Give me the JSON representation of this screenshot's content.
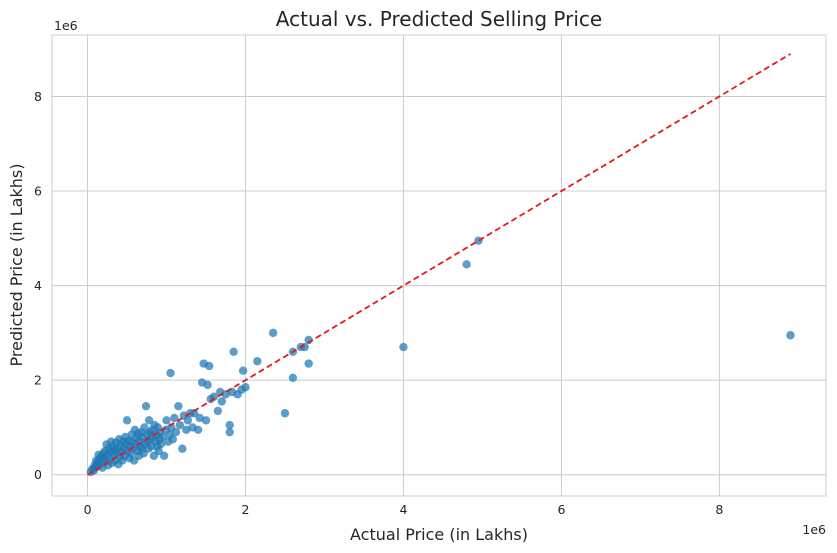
{
  "chart_data": {
    "type": "scatter",
    "title": "Actual vs. Predicted Selling Price",
    "xlabel": "Actual Price (in Lakhs)",
    "ylabel": "Predicted Price (in Lakhs)",
    "x_offset_label": "1e6",
    "y_offset_label": "1e6",
    "xlim": [
      -450000,
      9350000
    ],
    "ylim": [
      -450000,
      9300000
    ],
    "x_ticks": [
      0,
      2000000,
      4000000,
      6000000,
      8000000
    ],
    "x_tick_labels": [
      "0",
      "2",
      "4",
      "6",
      "8"
    ],
    "y_ticks": [
      0,
      2000000,
      4000000,
      6000000,
      8000000
    ],
    "y_tick_labels": [
      "0",
      "2",
      "4",
      "6",
      "8"
    ],
    "grid": true,
    "point_color": "#1f77b4",
    "line_color": "#e31a1c",
    "reference_line": {
      "style": "dashed",
      "x": [
        0,
        8900000
      ],
      "y": [
        0,
        8900000
      ]
    },
    "series": [
      {
        "points": [
          [
            40000,
            60000
          ],
          [
            60000,
            120000
          ],
          [
            80000,
            90000
          ],
          [
            90000,
            200000
          ],
          [
            100000,
            150000
          ],
          [
            110000,
            300000
          ],
          [
            120000,
            250000
          ],
          [
            130000,
            180000
          ],
          [
            140000,
            420000
          ],
          [
            150000,
            320000
          ],
          [
            160000,
            220000
          ],
          [
            170000,
            380000
          ],
          [
            180000,
            270000
          ],
          [
            190000,
            150000
          ],
          [
            200000,
            450000
          ],
          [
            210000,
            350000
          ],
          [
            220000,
            500000
          ],
          [
            230000,
            280000
          ],
          [
            240000,
            640000
          ],
          [
            250000,
            400000
          ],
          [
            260000,
            200000
          ],
          [
            270000,
            550000
          ],
          [
            280000,
            330000
          ],
          [
            290000,
            480000
          ],
          [
            300000,
            700000
          ],
          [
            310000,
            250000
          ],
          [
            320000,
            600000
          ],
          [
            330000,
            420000
          ],
          [
            340000,
            520000
          ],
          [
            350000,
            300000
          ],
          [
            360000,
            680000
          ],
          [
            370000,
            450000
          ],
          [
            380000,
            560000
          ],
          [
            390000,
            220000
          ],
          [
            400000,
            750000
          ],
          [
            410000,
            380000
          ],
          [
            420000,
            620000
          ],
          [
            430000,
            480000
          ],
          [
            440000,
            300000
          ],
          [
            450000,
            700000
          ],
          [
            460000,
            550000
          ],
          [
            470000,
            400000
          ],
          [
            480000,
            800000
          ],
          [
            490000,
            650000
          ],
          [
            500000,
            1150000
          ],
          [
            510000,
            500000
          ],
          [
            520000,
            720000
          ],
          [
            530000,
            350000
          ],
          [
            540000,
            600000
          ],
          [
            550000,
            450000
          ],
          [
            560000,
            850000
          ],
          [
            570000,
            700000
          ],
          [
            580000,
            550000
          ],
          [
            590000,
            300000
          ],
          [
            600000,
            950000
          ],
          [
            610000,
            650000
          ],
          [
            620000,
            780000
          ],
          [
            630000,
            500000
          ],
          [
            640000,
            870000
          ],
          [
            650000,
            400000
          ],
          [
            660000,
            720000
          ],
          [
            670000,
            600000
          ],
          [
            680000,
            900000
          ],
          [
            690000,
            550000
          ],
          [
            700000,
            780000
          ],
          [
            710000,
            450000
          ],
          [
            720000,
            1000000
          ],
          [
            730000,
            650000
          ],
          [
            740000,
            1450000
          ],
          [
            750000,
            850000
          ],
          [
            760000,
            700000
          ],
          [
            770000,
            550000
          ],
          [
            780000,
            1150000
          ],
          [
            790000,
            900000
          ],
          [
            800000,
            750000
          ],
          [
            810000,
            600000
          ],
          [
            820000,
            950000
          ],
          [
            830000,
            800000
          ],
          [
            840000,
            400000
          ],
          [
            850000,
            1050000
          ],
          [
            860000,
            700000
          ],
          [
            870000,
            850000
          ],
          [
            880000,
            600000
          ],
          [
            890000,
            1000000
          ],
          [
            900000,
            500000
          ],
          [
            910000,
            750000
          ],
          [
            920000,
            900000
          ],
          [
            930000,
            650000
          ],
          [
            950000,
            800000
          ],
          [
            970000,
            400000
          ],
          [
            990000,
            950000
          ],
          [
            1000000,
            1150000
          ],
          [
            1020000,
            700000
          ],
          [
            1040000,
            850000
          ],
          [
            1050000,
            2150000
          ],
          [
            1060000,
            1000000
          ],
          [
            1080000,
            750000
          ],
          [
            1100000,
            1200000
          ],
          [
            1120000,
            900000
          ],
          [
            1150000,
            1450000
          ],
          [
            1170000,
            1050000
          ],
          [
            1200000,
            550000
          ],
          [
            1220000,
            1250000
          ],
          [
            1250000,
            950000
          ],
          [
            1270000,
            1150000
          ],
          [
            1300000,
            1300000
          ],
          [
            1330000,
            1000000
          ],
          [
            1350000,
            1300000
          ],
          [
            1400000,
            950000
          ],
          [
            1420000,
            1200000
          ],
          [
            1450000,
            1950000
          ],
          [
            1470000,
            2350000
          ],
          [
            1500000,
            1150000
          ],
          [
            1520000,
            1900000
          ],
          [
            1540000,
            2300000
          ],
          [
            1560000,
            1600000
          ],
          [
            1600000,
            1650000
          ],
          [
            1650000,
            1350000
          ],
          [
            1680000,
            1750000
          ],
          [
            1700000,
            1550000
          ],
          [
            1750000,
            1700000
          ],
          [
            1800000,
            900000
          ],
          [
            1800000,
            1050000
          ],
          [
            1830000,
            1750000
          ],
          [
            1850000,
            2600000
          ],
          [
            1900000,
            1700000
          ],
          [
            1950000,
            1800000
          ],
          [
            1970000,
            2200000
          ],
          [
            2000000,
            1850000
          ],
          [
            2150000,
            2400000
          ],
          [
            2350000,
            3000000
          ],
          [
            2500000,
            1300000
          ],
          [
            2600000,
            2600000
          ],
          [
            2600000,
            2050000
          ],
          [
            2700000,
            2700000
          ],
          [
            2750000,
            2700000
          ],
          [
            2800000,
            2850000
          ],
          [
            2800000,
            2350000
          ],
          [
            4000000,
            2700000
          ],
          [
            4800000,
            4450000
          ],
          [
            4950000,
            4950000
          ],
          [
            8900000,
            2950000
          ]
        ]
      }
    ]
  }
}
